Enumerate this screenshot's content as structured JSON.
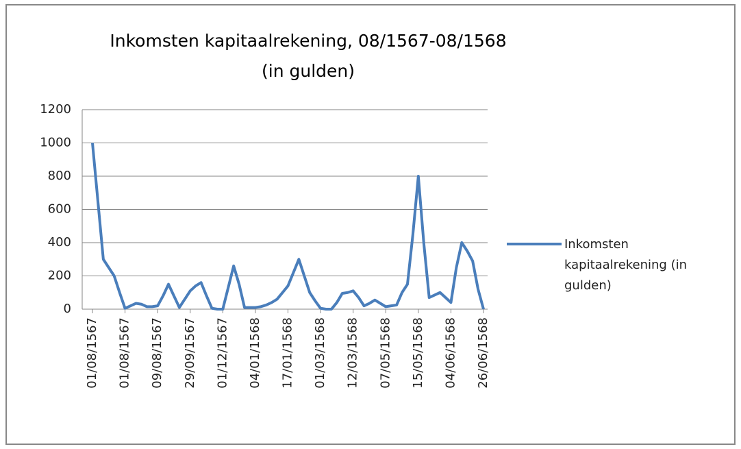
{
  "chart_data": {
    "type": "line",
    "title": "Inkomsten kapitaalrekening, 08/1567-08/1568 (in gulden)",
    "categories": [
      "01/08/1567",
      null,
      null,
      null,
      null,
      null,
      "01/08/1567",
      null,
      null,
      null,
      null,
      null,
      "09/08/1567",
      null,
      null,
      null,
      null,
      null,
      "29/09/1567",
      null,
      null,
      null,
      null,
      null,
      "01/12/1567",
      null,
      null,
      null,
      null,
      null,
      "04/01/1568",
      null,
      null,
      null,
      null,
      null,
      "17/01/1568",
      null,
      null,
      null,
      null,
      null,
      "01/03/1568",
      null,
      null,
      null,
      null,
      null,
      "12/03/1568",
      null,
      null,
      null,
      null,
      null,
      "07/05/1568",
      null,
      null,
      null,
      null,
      null,
      "15/05/1568",
      null,
      null,
      null,
      null,
      null,
      "04/06/1568",
      null,
      null,
      null,
      null,
      null,
      "26/06/1568"
    ],
    "series": [
      {
        "name": "Inkomsten kapitaalrekening (in gulden)",
        "color": "#4a7ebb",
        "values": [
          1000,
          650,
          300,
          250,
          200,
          100,
          5,
          20,
          35,
          30,
          15,
          15,
          20,
          80,
          150,
          80,
          10,
          60,
          110,
          140,
          160,
          80,
          5,
          0,
          0,
          130,
          260,
          150,
          10,
          10,
          10,
          15,
          25,
          40,
          60,
          100,
          140,
          220,
          300,
          200,
          100,
          50,
          5,
          0,
          0,
          40,
          95,
          100,
          110,
          70,
          20,
          35,
          55,
          35,
          15,
          20,
          25,
          100,
          150,
          450,
          800,
          400,
          70,
          85,
          100,
          70,
          40,
          250,
          400,
          350,
          290,
          120,
          0
        ]
      }
    ],
    "ylim": [
      0,
      1200
    ],
    "yticks": [
      0,
      200,
      400,
      600,
      800,
      1000,
      1200
    ],
    "grid": true,
    "legend": "right"
  }
}
